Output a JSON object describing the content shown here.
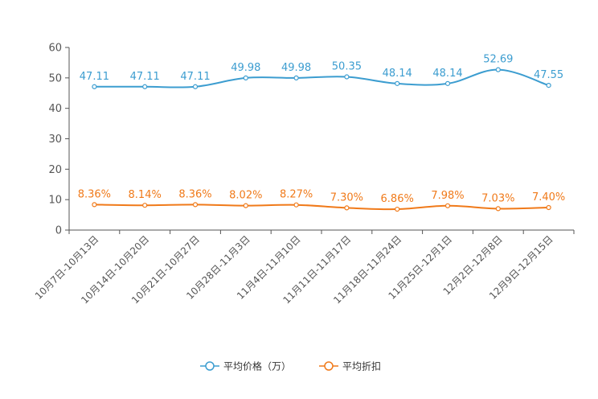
{
  "chart_data": {
    "type": "line",
    "categories": [
      "10月7日-10月13日",
      "10月14日-10月20日",
      "10月21日-10月27日",
      "10月28日-11月3日",
      "11月4日-11月10日",
      "11月11日-11月17日",
      "11月18日-11月24日",
      "11月25日-12月1日",
      "12月2日-12月8日",
      "12月9日-12月15日"
    ],
    "ylim": [
      0,
      60
    ],
    "yticks": [
      0,
      10,
      20,
      30,
      40,
      50,
      60
    ],
    "series": [
      {
        "name": "平均价格（万）",
        "color": "#3c9dd0",
        "values": [
          47.11,
          47.11,
          47.11,
          49.98,
          49.98,
          50.35,
          48.14,
          48.14,
          52.69,
          47.55
        ],
        "labels": [
          "47.11",
          "47.11",
          "47.11",
          "49.98",
          "49.98",
          "50.35",
          "48.14",
          "48.14",
          "52.69",
          "47.55"
        ]
      },
      {
        "name": "平均折扣",
        "color": "#f07a1a",
        "values": [
          8.36,
          8.14,
          8.36,
          8.02,
          8.27,
          7.3,
          6.86,
          7.98,
          7.03,
          7.4
        ],
        "labels": [
          "8.36%",
          "8.14%",
          "8.36%",
          "8.02%",
          "8.27%",
          "7.30%",
          "6.86%",
          "7.98%",
          "7.03%",
          "7.40%"
        ]
      }
    ],
    "legend_position": "bottom-center",
    "grid": false
  }
}
